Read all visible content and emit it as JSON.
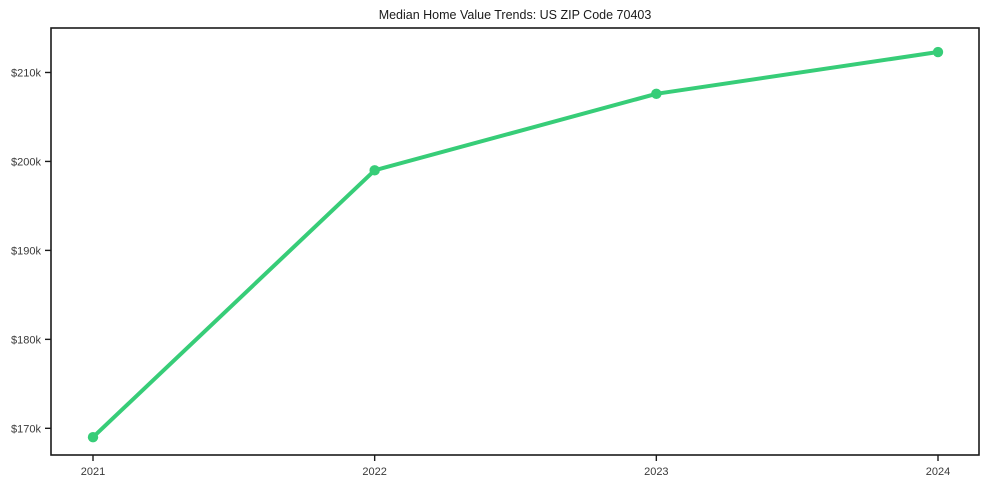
{
  "chart_data": {
    "type": "line",
    "title": "Median Home Value Trends: US ZIP Code 70403",
    "categories": [
      "2021",
      "2022",
      "2023",
      "2024"
    ],
    "values": [
      169000,
      199000,
      207600,
      212300
    ],
    "y_ticks": [
      {
        "value": 170000,
        "label": "$170k"
      },
      {
        "value": 180000,
        "label": "$180k"
      },
      {
        "value": 190000,
        "label": "$190k"
      },
      {
        "value": 200000,
        "label": "$200k"
      },
      {
        "value": 210000,
        "label": "$210k"
      }
    ],
    "ylim": [
      167000,
      215000
    ],
    "xlabel": "",
    "ylabel": "",
    "grid": false,
    "legend": "none",
    "marker": "circle",
    "colors": {
      "line": "#37cd78",
      "marker": "#37cd78",
      "frame": "#1a1a1a",
      "tick_text": "#3a3a3a",
      "background": "#ffffff"
    }
  }
}
